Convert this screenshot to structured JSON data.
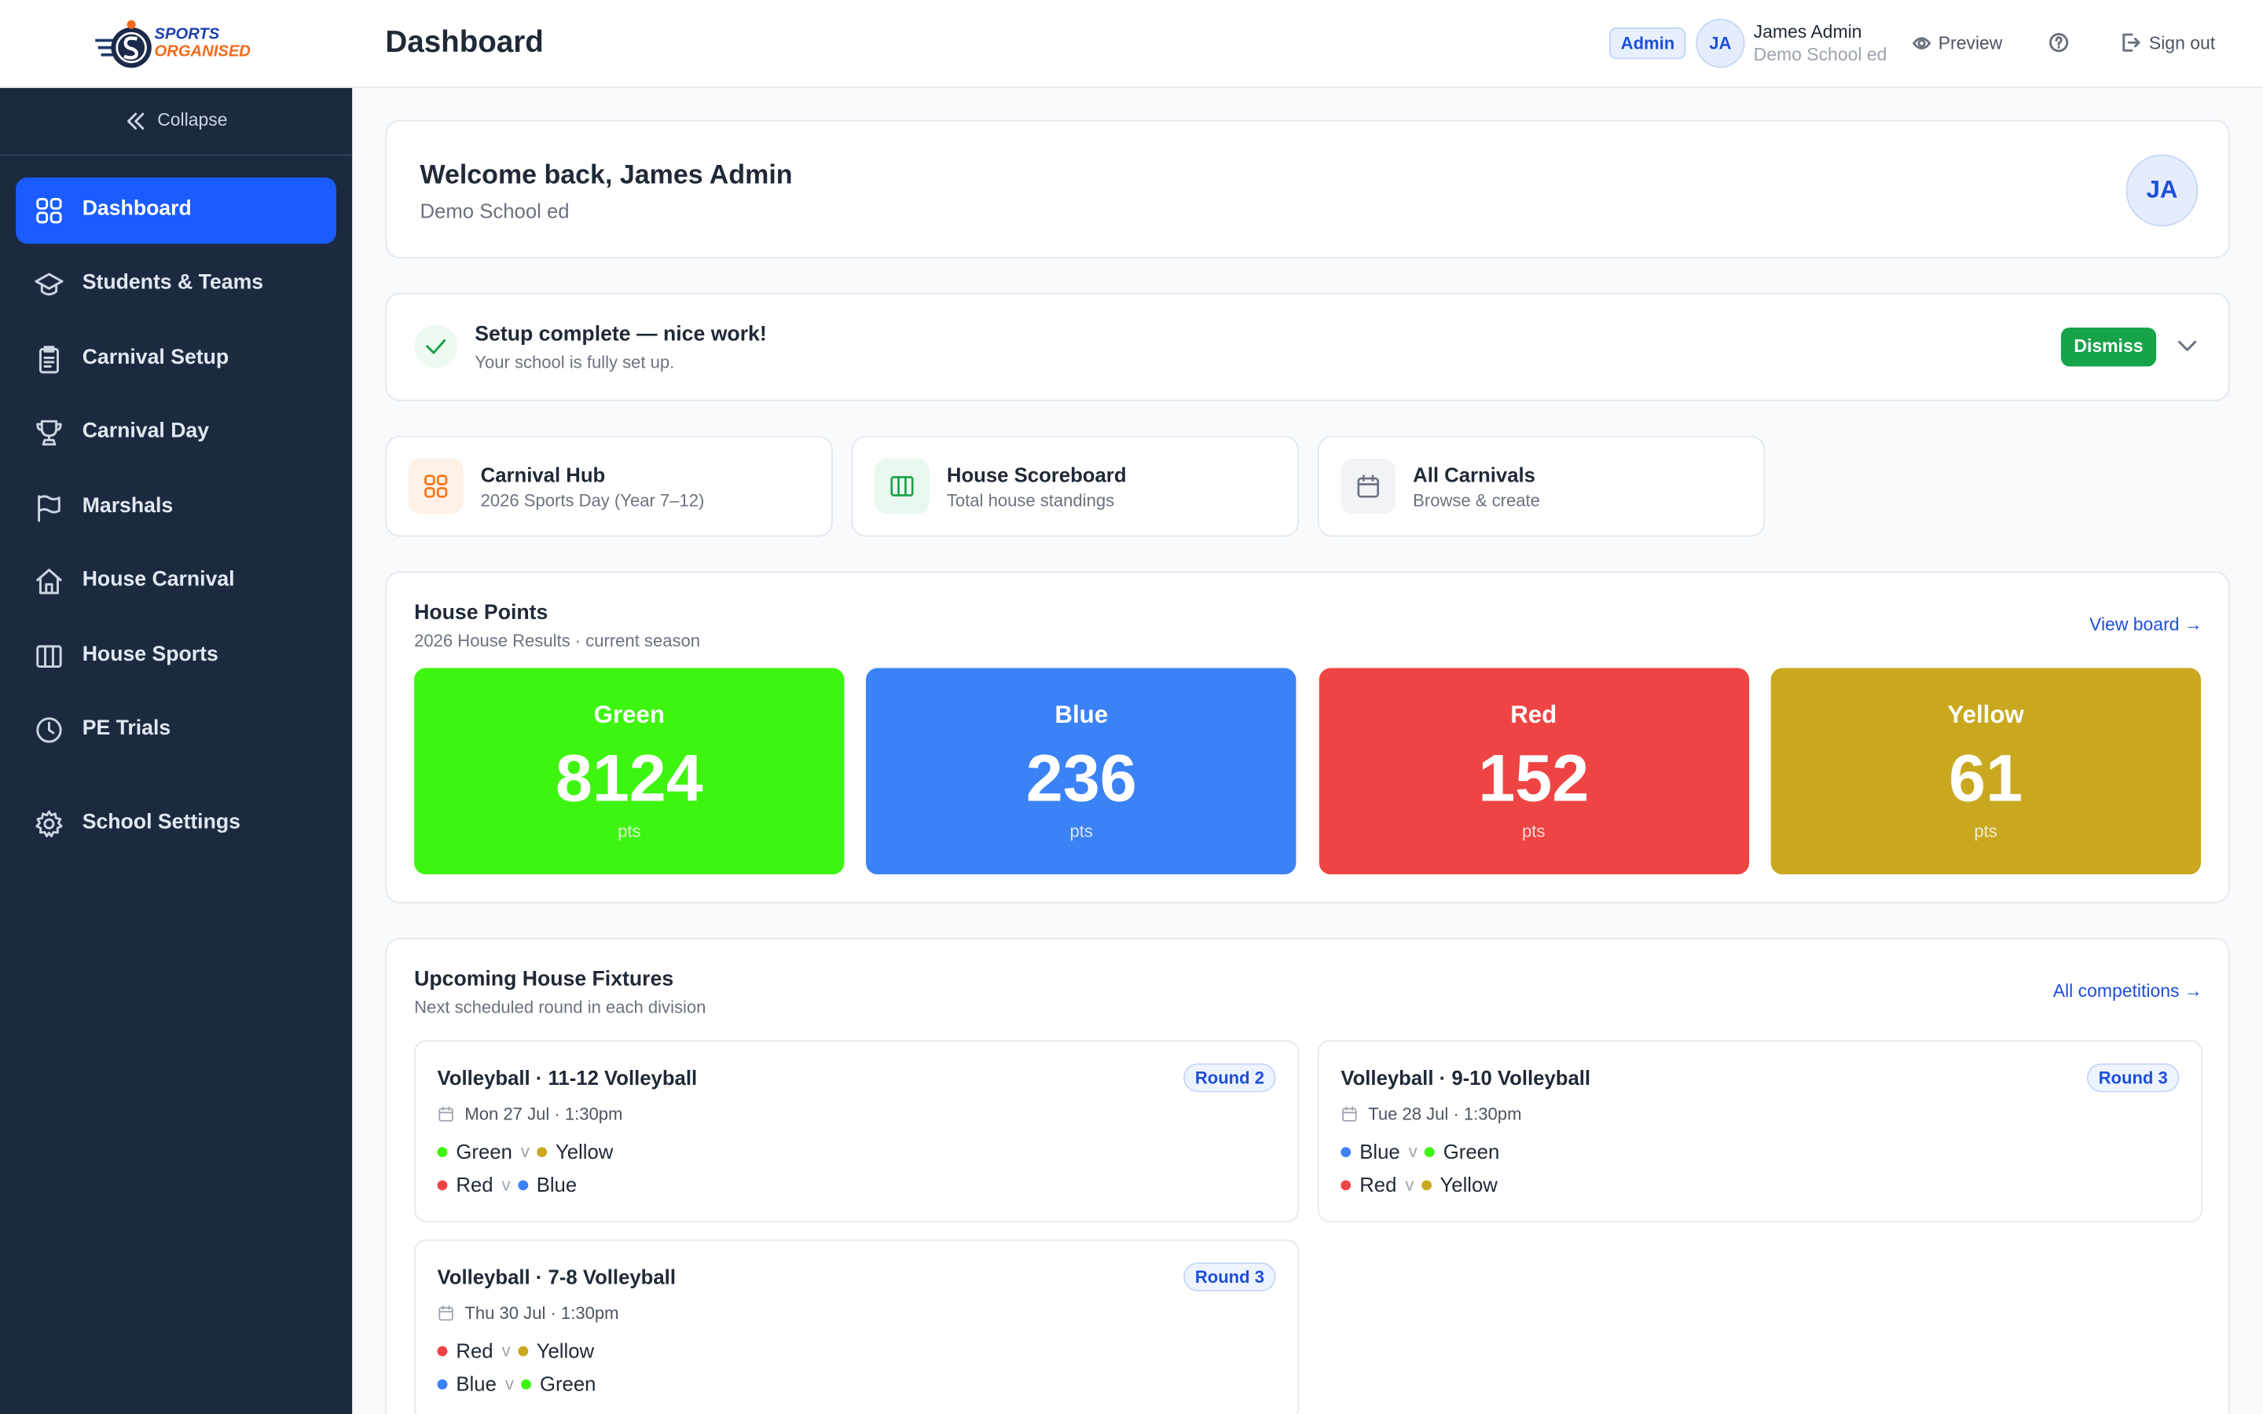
{
  "brand": {
    "line1": "SPORTS",
    "line2": "ORGANISED"
  },
  "header": {
    "title": "Dashboard",
    "role": "Admin",
    "initials": "JA",
    "user_name": "James Admin",
    "school": "Demo School ed",
    "preview": "Preview",
    "sign_out": "Sign out"
  },
  "sidebar": {
    "collapse": "Collapse",
    "items": [
      "Dashboard",
      "Students & Teams",
      "Carnival Setup",
      "Carnival Day",
      "Marshals",
      "House Carnival",
      "House Sports",
      "PE Trials"
    ],
    "settings": "School Settings"
  },
  "welcome": {
    "title": "Welcome back, James Admin",
    "subtitle": "Demo School ed",
    "initials": "JA"
  },
  "setup": {
    "title": "Setup complete — nice work!",
    "subtitle": "Your school is fully set up.",
    "dismiss": "Dismiss"
  },
  "quick_links": [
    {
      "title": "Carnival Hub",
      "subtitle": "2026 Sports Day (Year 7–12)"
    },
    {
      "title": "House Scoreboard",
      "subtitle": "Total house standings"
    },
    {
      "title": "All Carnivals",
      "subtitle": "Browse & create"
    }
  ],
  "house_points": {
    "title": "House Points",
    "subtitle": "2026 House Results · current season",
    "link": "View board →",
    "unit": "pts",
    "houses": [
      {
        "name": "Green",
        "points": 8124,
        "color": "#3ef50f"
      },
      {
        "name": "Blue",
        "points": 236,
        "color": "#3b82f6"
      },
      {
        "name": "Red",
        "points": 152,
        "color": "#ef4444"
      },
      {
        "name": "Yellow",
        "points": 61,
        "color": "#c9a820"
      }
    ]
  },
  "fixtures": {
    "title": "Upcoming House Fixtures",
    "subtitle": "Next scheduled round in each division",
    "link": "All competitions →",
    "versus": "v",
    "items": [
      {
        "title": "Volleyball · 11-12 Volleyball",
        "round": "Round 2",
        "when": "Mon 27 Jul · 1:30pm",
        "matches": [
          [
            "Green",
            "Yellow"
          ],
          [
            "Red",
            "Blue"
          ]
        ]
      },
      {
        "title": "Volleyball · 9-10 Volleyball",
        "round": "Round 3",
        "when": "Tue 28 Jul · 1:30pm",
        "matches": [
          [
            "Blue",
            "Green"
          ],
          [
            "Red",
            "Yellow"
          ]
        ]
      },
      {
        "title": "Volleyball · 7-8 Volleyball",
        "round": "Round 3",
        "when": "Thu 30 Jul · 1:30pm",
        "matches": [
          [
            "Red",
            "Yellow"
          ],
          [
            "Blue",
            "Green"
          ]
        ]
      }
    ]
  }
}
